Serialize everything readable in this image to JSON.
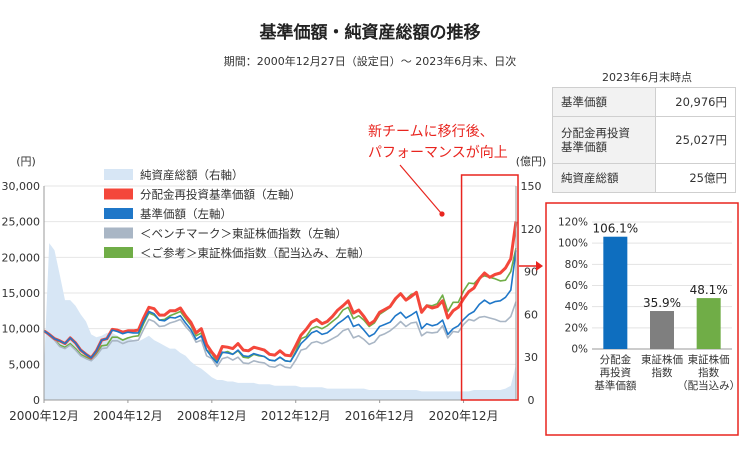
{
  "title": "基準価額・純資産総額の推移",
  "subtitle": "期間：2000年12月27日（設定日）～ 2023年6月末、日次",
  "stats_table": {
    "header": "2023年6月末時点",
    "rows": [
      {
        "label": "基準価額",
        "value": "20,976円"
      },
      {
        "label": "分配金再投資\n基準価額",
        "value": "25,027円"
      },
      {
        "label": "純資産総額",
        "value": "25億円"
      }
    ]
  },
  "annotation": {
    "lines": [
      "新チームに移行後、",
      "パフォーマンスが向上"
    ]
  },
  "colors": {
    "accent_red": "#e8251f",
    "aum_fill": "#d7e6f5",
    "nav": "#1f77c8",
    "nav_reinv": "#f4473b",
    "topix": "#a9b6c5",
    "topix_div": "#70ad47",
    "bar_blue": "#0e6ebf",
    "bar_gray": "#7f7f7f",
    "bar_green": "#70ad47"
  },
  "chart_data": [
    {
      "type": "line",
      "title": "",
      "left_axis": {
        "unit": "(円)",
        "ylim": [
          0,
          30000
        ],
        "ticks": [
          "0",
          "5,000",
          "10,000",
          "15,000",
          "20,000",
          "25,000",
          "30,000"
        ]
      },
      "right_axis": {
        "unit": "(億円)",
        "ylim": [
          0,
          150
        ],
        "ticks": [
          "0",
          "30",
          "60",
          "90",
          "120",
          "150"
        ]
      },
      "x_tick_labels": [
        "2000年12月",
        "2004年12月",
        "2008年12月",
        "2012年12月",
        "2016年12月",
        "2020年12月"
      ],
      "x_range": [
        "2000-12",
        "2023-06"
      ],
      "legend": [
        "純資産総額（右軸）",
        "分配金再投資基準価額（左軸）",
        "基準価額（左軸）",
        "＜ベンチマーク＞東証株価指数（左軸）",
        "＜ご参考＞東証株価指数（配当込み、左軸）"
      ],
      "highlight_period": [
        "2020-12",
        "2023-06"
      ],
      "x": [
        "2000-12",
        "2001-03",
        "2001-06",
        "2001-09",
        "2001-12",
        "2002-03",
        "2002-06",
        "2002-09",
        "2002-12",
        "2003-03",
        "2003-06",
        "2003-09",
        "2003-12",
        "2004-03",
        "2004-06",
        "2004-09",
        "2004-12",
        "2005-03",
        "2005-06",
        "2005-09",
        "2005-12",
        "2006-03",
        "2006-06",
        "2006-09",
        "2006-12",
        "2007-03",
        "2007-06",
        "2007-09",
        "2007-12",
        "2008-03",
        "2008-06",
        "2008-09",
        "2008-12",
        "2009-03",
        "2009-06",
        "2009-09",
        "2009-12",
        "2010-03",
        "2010-06",
        "2010-09",
        "2010-12",
        "2011-03",
        "2011-06",
        "2011-09",
        "2011-12",
        "2012-03",
        "2012-06",
        "2012-09",
        "2012-12",
        "2013-03",
        "2013-06",
        "2013-09",
        "2013-12",
        "2014-03",
        "2014-06",
        "2014-09",
        "2014-12",
        "2015-03",
        "2015-06",
        "2015-09",
        "2015-12",
        "2016-03",
        "2016-06",
        "2016-09",
        "2016-12",
        "2017-03",
        "2017-06",
        "2017-09",
        "2017-12",
        "2018-03",
        "2018-06",
        "2018-09",
        "2018-12",
        "2019-03",
        "2019-06",
        "2019-09",
        "2019-12",
        "2020-03",
        "2020-06",
        "2020-09",
        "2020-12",
        "2021-03",
        "2021-06",
        "2021-09",
        "2021-12",
        "2022-03",
        "2022-06",
        "2022-09",
        "2022-12",
        "2023-03",
        "2023-06"
      ],
      "series": [
        {
          "name": "純資産総額（右軸）",
          "axis": "right",
          "style": "area",
          "values": [
            22,
            110,
            105,
            88,
            70,
            70,
            66,
            60,
            55,
            46,
            44,
            45,
            47,
            47,
            45,
            43,
            44,
            42,
            41,
            43,
            45,
            42,
            40,
            38,
            36,
            36,
            33,
            31,
            27,
            24,
            22,
            19,
            16,
            14,
            14,
            13,
            13,
            12,
            12,
            12,
            12,
            11,
            11,
            11,
            10,
            10,
            10,
            10,
            10,
            9,
            9,
            9,
            9,
            9,
            8,
            8,
            8,
            8,
            8,
            8,
            8,
            8,
            7,
            7,
            7,
            7,
            7,
            7,
            7,
            7,
            7,
            7,
            6,
            6,
            6,
            6,
            6,
            6,
            6,
            6,
            6,
            6,
            7,
            7,
            7,
            7,
            7,
            7,
            8,
            10,
            25
          ]
        },
        {
          "name": "分配金再投資基準価額（左軸）",
          "axis": "left",
          "values": [
            9700,
            9200,
            8600,
            8300,
            7900,
            8700,
            8000,
            7000,
            6400,
            5900,
            6900,
            8400,
            8600,
            9900,
            9800,
            9500,
            9700,
            9700,
            9800,
            11500,
            13000,
            12800,
            11900,
            11900,
            12500,
            12500,
            12900,
            11800,
            10900,
            9400,
            10000,
            7800,
            6700,
            5800,
            7500,
            7400,
            7200,
            7900,
            7000,
            6900,
            7400,
            7200,
            7000,
            6400,
            6300,
            6900,
            6300,
            6200,
            7600,
            9100,
            9900,
            10900,
            11300,
            10700,
            11000,
            11700,
            12600,
            13200,
            13900,
            12200,
            12600,
            11700,
            10600,
            11100,
            12300,
            12700,
            13100,
            14200,
            14900,
            14000,
            14500,
            15100,
            12300,
            13200,
            12900,
            13100,
            13900,
            11500,
            12500,
            13000,
            14200,
            15200,
            15700,
            17000,
            17800,
            17200,
            17600,
            17800,
            18500,
            19800,
            25027
          ]
        },
        {
          "name": "基準価額（左軸）",
          "axis": "left",
          "values": [
            9700,
            9200,
            8600,
            8300,
            7900,
            8700,
            8000,
            7000,
            6400,
            5900,
            6900,
            8400,
            8600,
            9800,
            9600,
            9300,
            9500,
            9400,
            9400,
            11000,
            12400,
            12100,
            11200,
            11100,
            11600,
            11500,
            11800,
            10800,
            9900,
            8500,
            9000,
            7000,
            6000,
            5200,
            6700,
            6600,
            6400,
            7000,
            6200,
            6100,
            6500,
            6300,
            6100,
            5600,
            5500,
            6000,
            5500,
            5400,
            6600,
            7900,
            8600,
            9400,
            9700,
            9200,
            9400,
            10000,
            10700,
            11200,
            11800,
            10300,
            10600,
            9800,
            8900,
            9300,
            10300,
            10600,
            10900,
            11800,
            12300,
            11500,
            11900,
            12400,
            10000,
            10700,
            10400,
            10600,
            11200,
            9200,
            10000,
            10400,
            11300,
            12000,
            12400,
            13400,
            14000,
            13500,
            13800,
            13900,
            14400,
            15400,
            20976
          ]
        },
        {
          "name": "＜ベンチマーク＞東証株価指数（左軸）",
          "axis": "left",
          "values": [
            9700,
            9000,
            8400,
            7500,
            7200,
            7700,
            7000,
            6200,
            5800,
            5500,
            6200,
            7200,
            7300,
            8300,
            8300,
            7900,
            8200,
            8300,
            8400,
            9900,
            11300,
            11000,
            10300,
            10400,
            10800,
            11000,
            11300,
            10300,
            9500,
            8100,
            8400,
            6200,
            5800,
            4700,
            5800,
            6000,
            5600,
            6000,
            5200,
            5100,
            5500,
            5300,
            5200,
            4700,
            4600,
            5000,
            4600,
            4500,
            5600,
            7000,
            7200,
            8000,
            8200,
            7900,
            8200,
            8600,
            9000,
            9700,
            10000,
            8700,
            9000,
            8500,
            7800,
            8100,
            9000,
            9300,
            9700,
            10300,
            11000,
            10300,
            10800,
            10900,
            9000,
            9500,
            9400,
            9500,
            10400,
            8700,
            9600,
            9500,
            10600,
            11300,
            11100,
            11600,
            11700,
            11500,
            11300,
            11000,
            11000,
            11700,
            13800
          ]
        },
        {
          "name": "＜ご参考＞東証株価指数（配当込み、左軸）",
          "axis": "left",
          "values": [
            9700,
            9100,
            8500,
            7700,
            7400,
            7900,
            7200,
            6400,
            6000,
            5700,
            6500,
            7600,
            7700,
            8800,
            8800,
            8400,
            8700,
            8900,
            9000,
            10700,
            12200,
            11900,
            11200,
            11300,
            11800,
            12100,
            12400,
            11400,
            10500,
            9000,
            9400,
            7000,
            6500,
            5300,
            6600,
            6800,
            6400,
            6900,
            6000,
            5900,
            6400,
            6200,
            6100,
            5600,
            5500,
            6000,
            5500,
            5400,
            6800,
            8600,
            8900,
            10000,
            10300,
            10000,
            10400,
            11000,
            11600,
            12600,
            13000,
            11400,
            11800,
            11200,
            10300,
            10800,
            12000,
            12500,
            13000,
            14000,
            15000,
            14100,
            14800,
            15000,
            12500,
            13300,
            13200,
            13500,
            14700,
            12400,
            13700,
            13700,
            15300,
            16400,
            16300,
            17100,
            17400,
            17200,
            17000,
            16700,
            16800,
            18000,
            21300
          ]
        }
      ]
    },
    {
      "type": "bar",
      "title": "",
      "ylim": [
        0,
        120
      ],
      "y_ticks": [
        "0%",
        "20%",
        "40%",
        "60%",
        "80%",
        "100%",
        "120%"
      ],
      "categories": [
        "分配金\n再投資\n基準価額",
        "東証株価\n指数",
        "東証株価\n指数\n（配当込み）"
      ],
      "values": [
        106.1,
        35.9,
        48.1
      ],
      "value_labels": [
        "106.1%",
        "35.9%",
        "48.1%"
      ]
    }
  ]
}
